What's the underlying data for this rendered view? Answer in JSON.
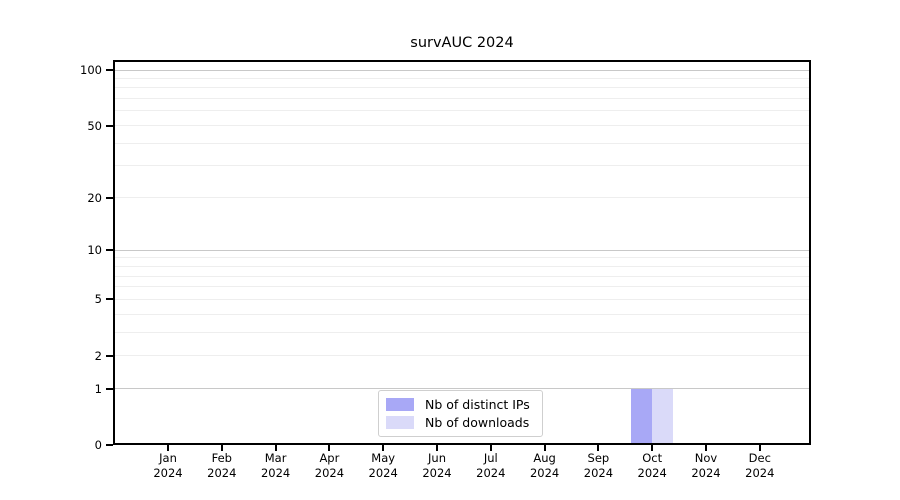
{
  "chart_data": {
    "type": "bar",
    "title": "survAUC 2024",
    "categories": [
      "Jan 2024",
      "Feb 2024",
      "Mar 2024",
      "Apr 2024",
      "May 2024",
      "Jun 2024",
      "Jul 2024",
      "Aug 2024",
      "Sep 2024",
      "Oct 2024",
      "Nov 2024",
      "Dec 2024"
    ],
    "series": [
      {
        "name": "Nb of distinct IPs",
        "color": "#a8a8f6",
        "values": [
          0,
          0,
          0,
          0,
          0,
          0,
          0,
          0,
          0,
          1,
          0,
          0
        ]
      },
      {
        "name": "Nb of downloads",
        "color": "#dadaf9",
        "values": [
          0,
          0,
          0,
          0,
          0,
          0,
          0,
          0,
          0,
          1,
          0,
          0
        ]
      }
    ],
    "yticks": [
      0,
      1,
      2,
      5,
      10,
      20,
      50,
      100
    ],
    "yscale": "log1p",
    "ylim": [
      0,
      113
    ],
    "grid": true,
    "legend_position": "bottom-center-inside"
  },
  "colors": {
    "bar_distinct_ips": "#a8a8f6",
    "bar_downloads": "#dadaf9",
    "grid_major": "#c8c8c8",
    "grid_minor": "#eeeeee",
    "axis": "#000000",
    "legend_border": "#cfcfcf",
    "background": "#ffffff"
  }
}
